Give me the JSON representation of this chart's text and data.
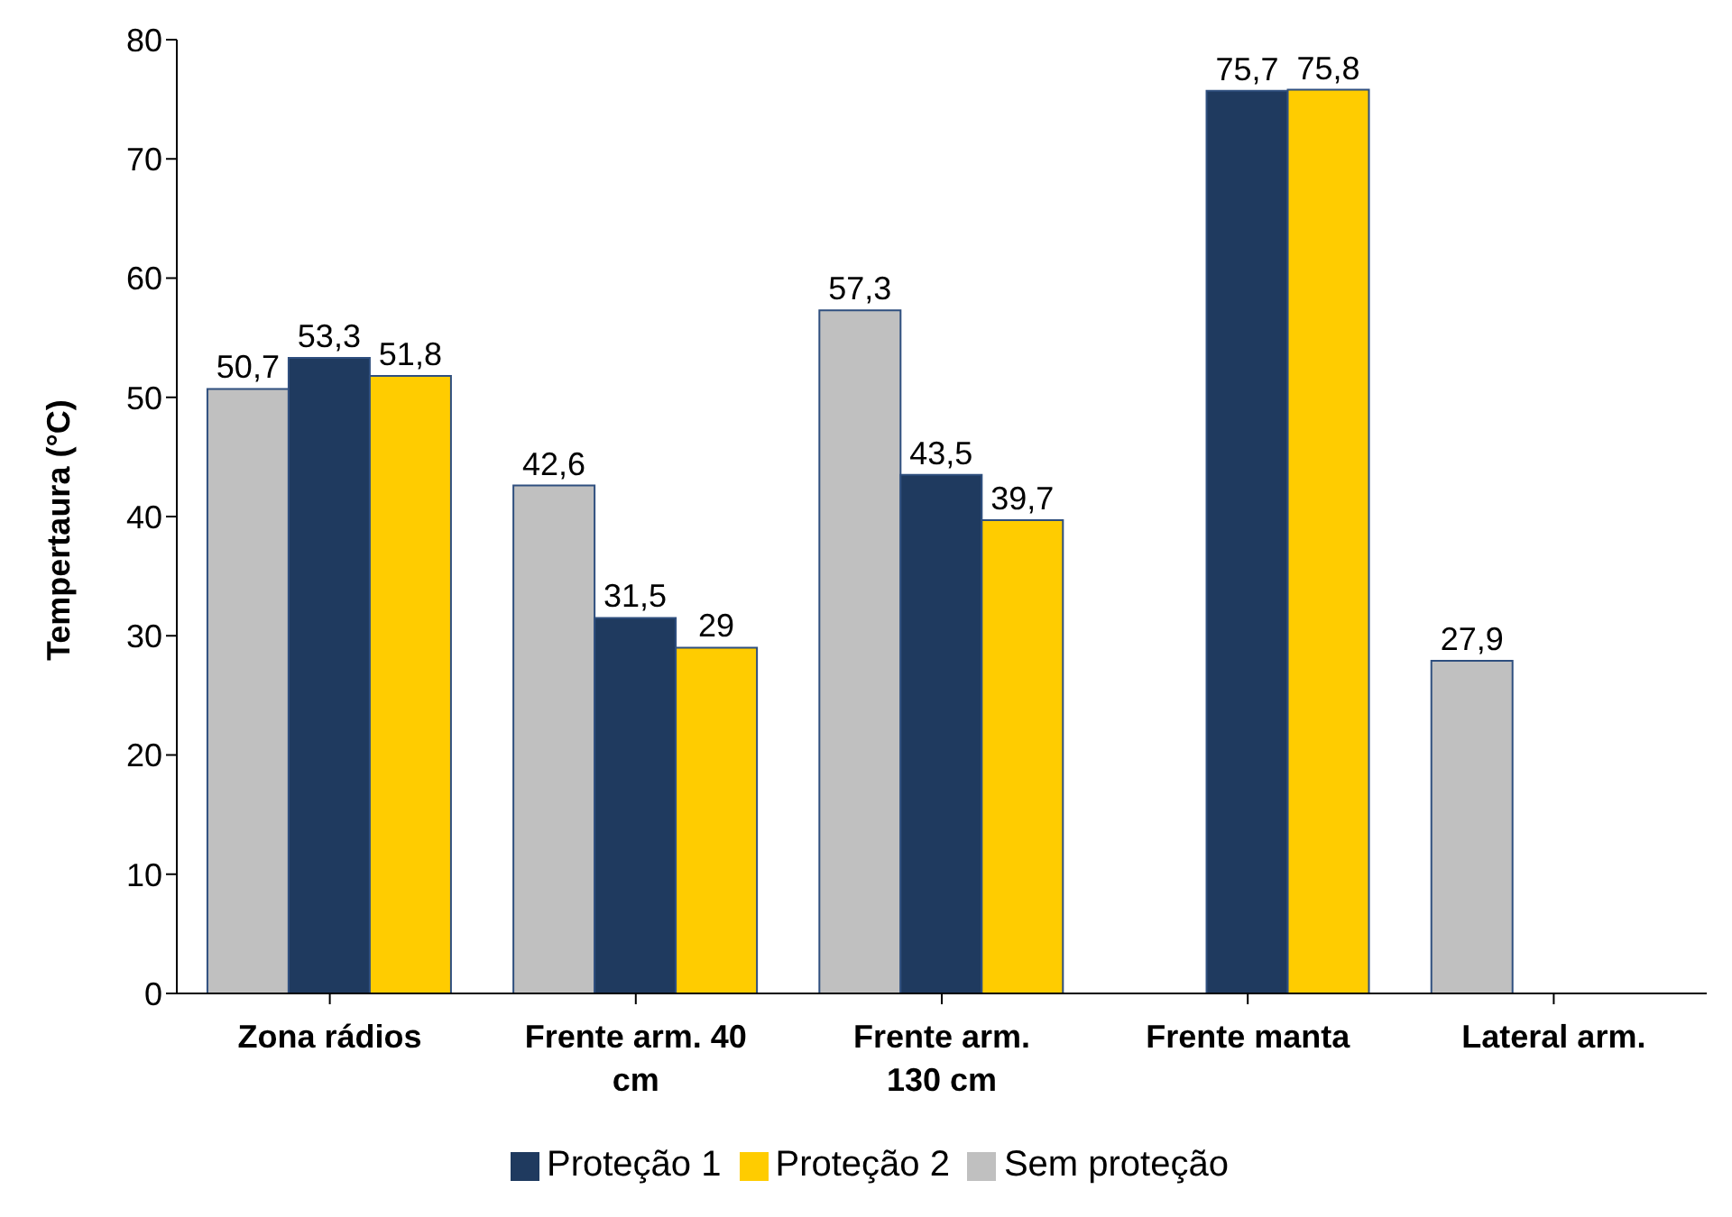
{
  "chart_data": {
    "type": "bar",
    "ylabel": "Tempertaura (°C)",
    "categories": [
      "Zona rádios",
      "Frente arm. 40 cm",
      "Frente arm. 130 cm",
      "Frente manta",
      "Lateral arm."
    ],
    "series": [
      {
        "name": "Sem proteção",
        "color": "#c0c0c0",
        "values": [
          50.7,
          42.6,
          57.3,
          null,
          27.9
        ],
        "value_labels": [
          "50,7",
          "42,6",
          "57,3",
          null,
          "27,9"
        ]
      },
      {
        "name": "Proteção 1",
        "color": "#1f3a5f",
        "values": [
          53.3,
          31.5,
          43.5,
          75.7,
          null
        ],
        "value_labels": [
          "53,3",
          "31,5",
          "43,5",
          "75,7",
          null
        ]
      },
      {
        "name": "Proteção 2",
        "color": "#ffcc00",
        "values": [
          51.8,
          29,
          39.7,
          75.8,
          null
        ],
        "value_labels": [
          "51,8",
          "29",
          "39,7",
          "75,8",
          null
        ]
      }
    ],
    "ylim": [
      0,
      80
    ],
    "yticks": [
      0,
      10,
      20,
      30,
      40,
      50,
      60,
      70,
      80
    ],
    "grid": false,
    "legend": "bottom"
  }
}
